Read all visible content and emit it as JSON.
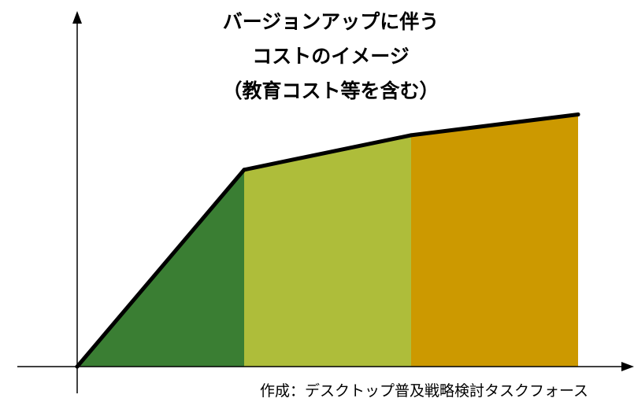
{
  "chart_data": {
    "type": "area",
    "title_lines": [
      "バージョンアップに伴う",
      "コストのイメージ",
      "（教育コスト等を含む）"
    ],
    "x": [
      0,
      1,
      2,
      3
    ],
    "y": [
      0,
      0.57,
      0.67,
      0.73
    ],
    "segments": [
      {
        "from": 0,
        "to": 1,
        "color": "#3a7e33"
      },
      {
        "from": 1,
        "to": 2,
        "color": "#aebd3a"
      },
      {
        "from": 2,
        "to": 3,
        "color": "#cc9900"
      }
    ],
    "line_color": "#000000",
    "axes": {
      "color": "#000000",
      "arrows": true,
      "ticks": false,
      "grid": false
    },
    "xlim": [
      0,
      3.3
    ],
    "ylim": [
      0,
      1.0
    ],
    "legend": "none"
  },
  "credit": "作成：デスクトップ普及戦略検討タスクフォース"
}
